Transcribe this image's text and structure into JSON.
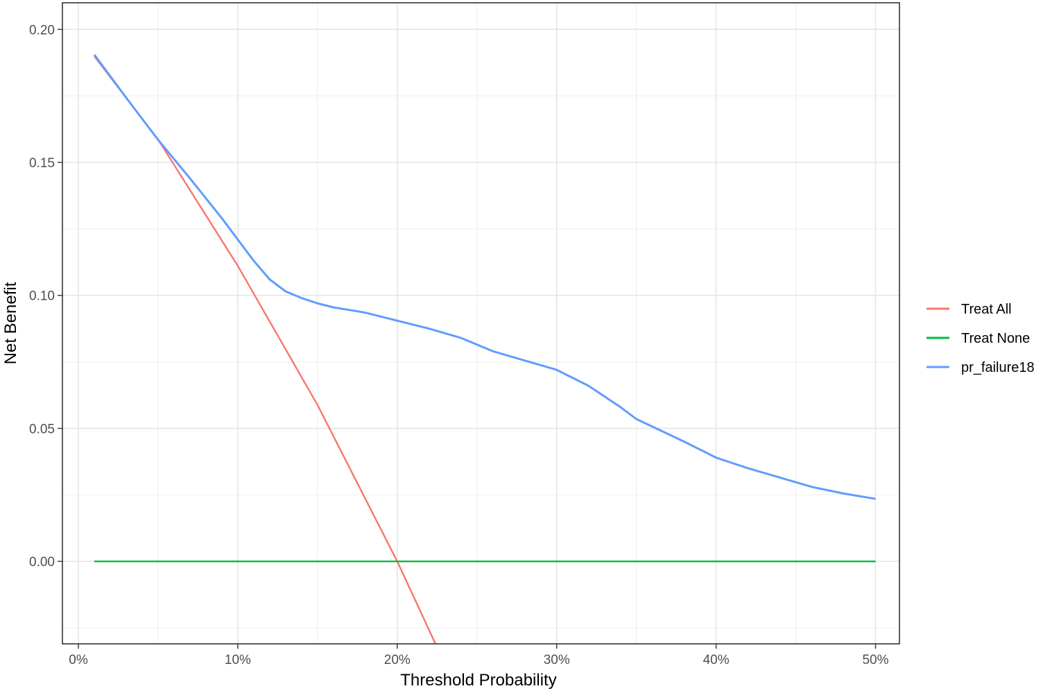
{
  "chart_data": {
    "type": "line",
    "title": "",
    "xlabel": "Threshold Probability",
    "ylabel": "Net Benefit",
    "xlim": [
      -0.01,
      0.515
    ],
    "ylim": [
      -0.031,
      0.21
    ],
    "x_ticks": [
      0,
      0.1,
      0.2,
      0.3,
      0.4,
      0.5
    ],
    "x_tick_labels": [
      "0%",
      "10%",
      "20%",
      "30%",
      "40%",
      "50%"
    ],
    "y_ticks": [
      0.0,
      0.05,
      0.1,
      0.15,
      0.2
    ],
    "y_tick_labels": [
      "0.00",
      "0.05",
      "0.10",
      "0.15",
      "0.20"
    ],
    "grid": true,
    "legend_position": "right",
    "series": [
      {
        "name": "Treat All",
        "color": "#F8766D",
        "x": [
          0.01,
          0.05,
          0.1,
          0.15,
          0.2,
          0.225
        ],
        "y": [
          0.1899,
          0.1586,
          0.1111,
          0.0588,
          0.0,
          -0.0323
        ]
      },
      {
        "name": "Treat None",
        "color": "#00BA38",
        "x": [
          0.01,
          0.5
        ],
        "y": [
          0.0,
          0.0
        ]
      },
      {
        "name": "pr_failure18",
        "color": "#619CFF",
        "x": [
          0.01,
          0.03,
          0.05,
          0.07,
          0.09,
          0.1,
          0.11,
          0.12,
          0.13,
          0.14,
          0.15,
          0.16,
          0.17,
          0.18,
          0.19,
          0.2,
          0.22,
          0.24,
          0.26,
          0.28,
          0.3,
          0.32,
          0.34,
          0.35,
          0.38,
          0.4,
          0.42,
          0.44,
          0.46,
          0.48,
          0.5
        ],
        "y": [
          0.1905,
          0.1743,
          0.1585,
          0.144,
          0.129,
          0.121,
          0.113,
          0.106,
          0.1015,
          0.099,
          0.097,
          0.0955,
          0.0945,
          0.0935,
          0.092,
          0.0905,
          0.0875,
          0.084,
          0.079,
          0.0755,
          0.072,
          0.066,
          0.058,
          0.0535,
          0.045,
          0.039,
          0.035,
          0.0315,
          0.028,
          0.0255,
          0.0235
        ]
      }
    ]
  }
}
